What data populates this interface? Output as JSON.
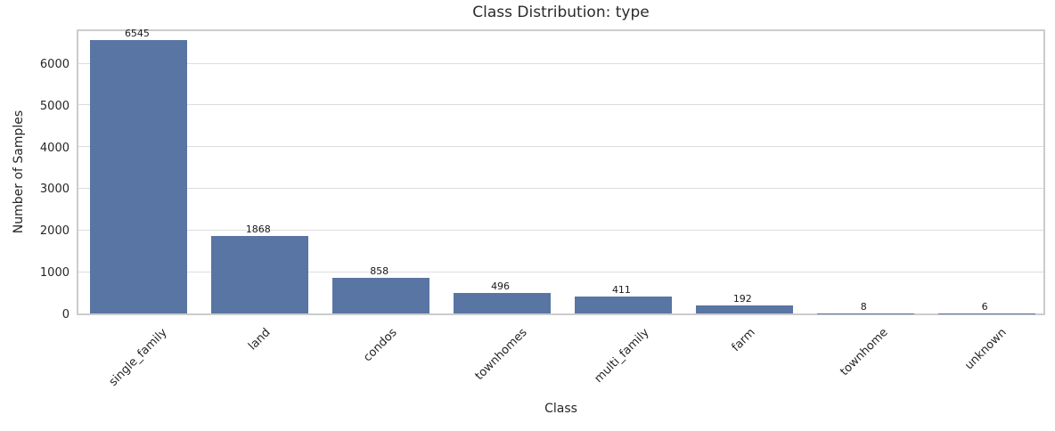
{
  "chart_data": {
    "type": "bar",
    "title": "Class Distribution: type",
    "xlabel": "Class",
    "ylabel": "Number of Samples",
    "categories": [
      "single_family",
      "land",
      "condos",
      "townhomes",
      "multi_family",
      "farm",
      "townhome",
      "unknown"
    ],
    "values": [
      6545,
      1868,
      858,
      496,
      411,
      192,
      8,
      6
    ],
    "yticks": [
      0,
      1000,
      2000,
      3000,
      4000,
      5000,
      6000
    ],
    "ylim": [
      0,
      6854
    ],
    "grid": true,
    "legend": "none",
    "x_tick_rotation": 45,
    "colors": {
      "bar": "#5975a4",
      "grid": "#dcdcdc",
      "spine": "#cccccc",
      "text": "#262626",
      "value_label": "#1a1a1a",
      "background": "#ffffff"
    }
  }
}
